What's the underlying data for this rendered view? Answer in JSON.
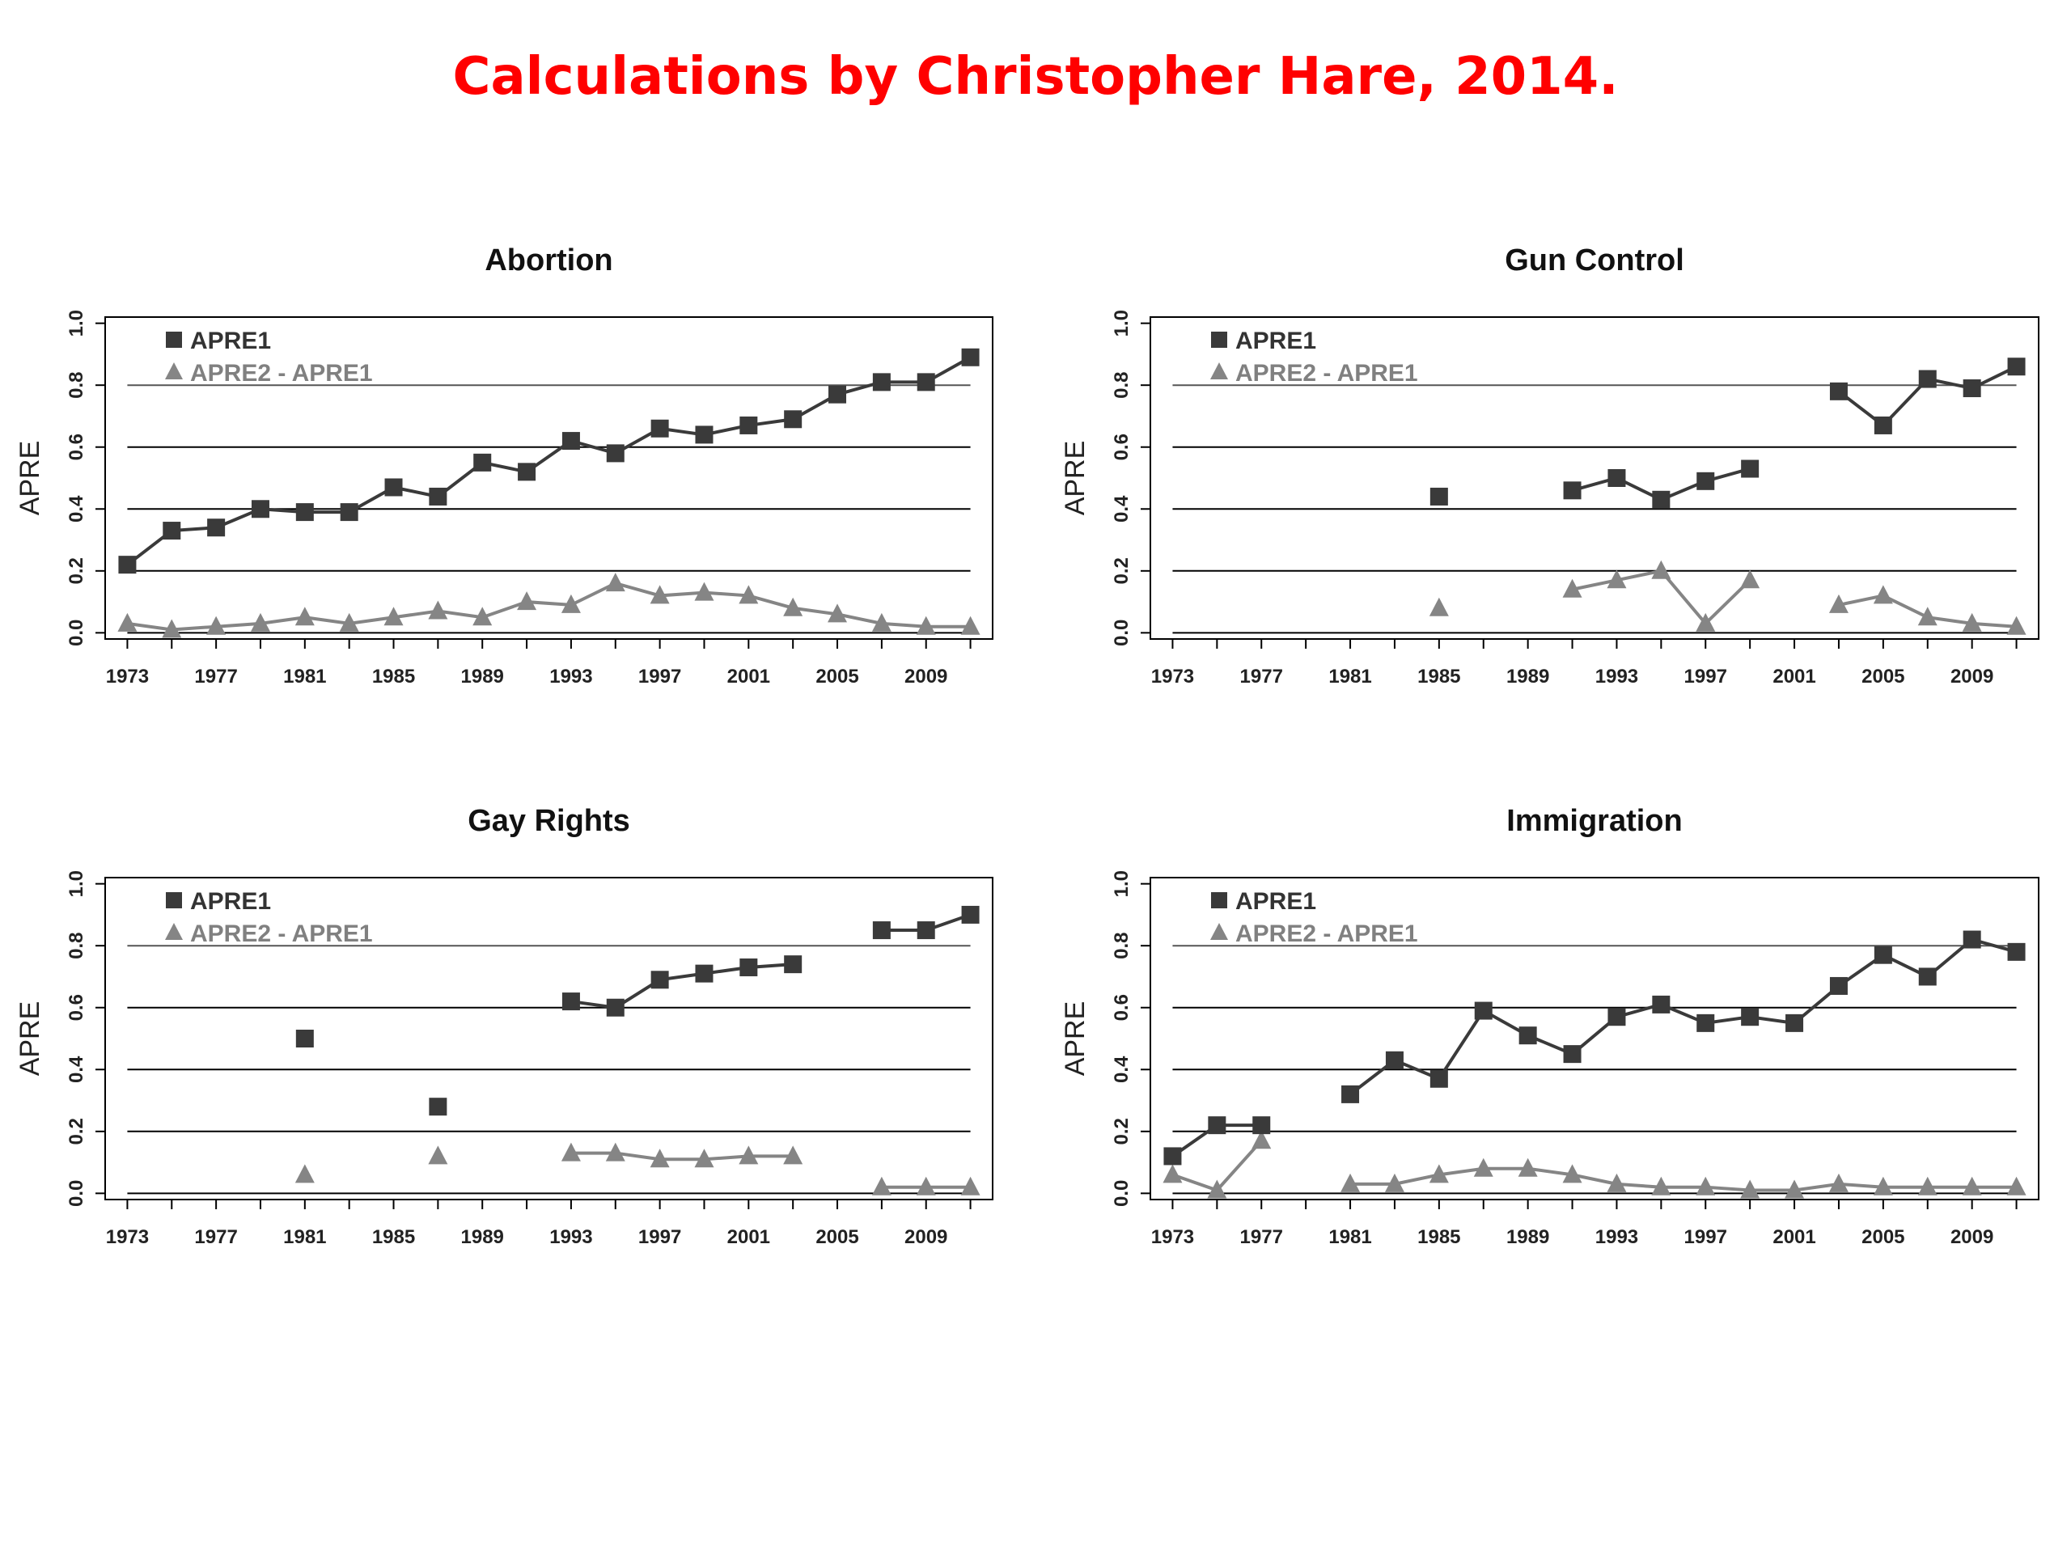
{
  "title": "Calculations by Christopher Hare, 2014.",
  "colors": {
    "title": "#ff0000",
    "apre1": "#3a3a3a",
    "apre2": "#858585",
    "grid": "#000000"
  },
  "chart_data": [
    {
      "type": "line",
      "title": "Abortion",
      "ylabel": "APRE",
      "xlim": [
        1972,
        2012
      ],
      "ylim": [
        -0.02,
        1.02
      ],
      "x_ticks": [
        "1973",
        "1977",
        "1981",
        "1985",
        "1989",
        "1993",
        "1997",
        "2001",
        "2005",
        "2009"
      ],
      "y_ticks": [
        "0.0",
        "0.2",
        "0.4",
        "0.6",
        "0.8",
        "1.0"
      ],
      "gridlines_y": [
        0.0,
        0.2,
        0.4,
        0.6,
        0.8
      ],
      "legend": "top-left",
      "series": [
        {
          "name": "APRE1",
          "marker": "square",
          "x": [
            1973,
            1975,
            1977,
            1979,
            1981,
            1983,
            1985,
            1987,
            1989,
            1991,
            1993,
            1995,
            1997,
            1999,
            2001,
            2003,
            2005,
            2007,
            2009,
            2011
          ],
          "y": [
            0.22,
            0.33,
            0.34,
            0.4,
            0.39,
            0.39,
            0.47,
            0.44,
            0.55,
            0.52,
            0.62,
            0.58,
            0.66,
            0.64,
            0.67,
            0.69,
            0.77,
            0.81,
            0.81,
            0.89
          ]
        },
        {
          "name": "APRE2 - APRE1",
          "marker": "triangle",
          "x": [
            1973,
            1975,
            1977,
            1979,
            1981,
            1983,
            1985,
            1987,
            1989,
            1991,
            1993,
            1995,
            1997,
            1999,
            2001,
            2003,
            2005,
            2007,
            2009,
            2011
          ],
          "y": [
            0.03,
            0.01,
            0.02,
            0.03,
            0.05,
            0.03,
            0.05,
            0.07,
            0.05,
            0.1,
            0.09,
            0.16,
            0.12,
            0.13,
            0.12,
            0.08,
            0.06,
            0.03,
            0.02,
            0.02
          ]
        }
      ]
    },
    {
      "type": "line",
      "title": "Gun Control",
      "ylabel": "APRE",
      "xlim": [
        1972,
        2012
      ],
      "ylim": [
        -0.02,
        1.02
      ],
      "x_ticks": [
        "1973",
        "1977",
        "1981",
        "1985",
        "1989",
        "1993",
        "1997",
        "2001",
        "2005",
        "2009"
      ],
      "y_ticks": [
        "0.0",
        "0.2",
        "0.4",
        "0.6",
        "0.8",
        "1.0"
      ],
      "gridlines_y": [
        0.0,
        0.2,
        0.4,
        0.6,
        0.8
      ],
      "legend": "top-left",
      "series": [
        {
          "name": "APRE1",
          "marker": "square",
          "x": [
            1985,
            null,
            1991,
            1993,
            1995,
            1997,
            1999,
            null,
            2003,
            2005,
            2007,
            2009,
            2011
          ],
          "y": [
            0.44,
            null,
            0.46,
            0.5,
            0.43,
            0.49,
            0.53,
            null,
            0.78,
            0.67,
            0.82,
            0.79,
            0.86
          ]
        },
        {
          "name": "APRE2 - APRE1",
          "marker": "triangle",
          "x": [
            1985,
            null,
            1991,
            1993,
            1995,
            1997,
            1999,
            null,
            2003,
            2005,
            2007,
            2009,
            2011
          ],
          "y": [
            0.08,
            null,
            0.14,
            0.17,
            0.2,
            0.03,
            0.17,
            null,
            0.09,
            0.12,
            0.05,
            0.03,
            0.02
          ]
        }
      ]
    },
    {
      "type": "line",
      "title": "Gay Rights",
      "ylabel": "APRE",
      "xlim": [
        1972,
        2012
      ],
      "ylim": [
        -0.02,
        1.02
      ],
      "x_ticks": [
        "1973",
        "1977",
        "1981",
        "1985",
        "1989",
        "1993",
        "1997",
        "2001",
        "2005",
        "2009"
      ],
      "y_ticks": [
        "0.0",
        "0.2",
        "0.4",
        "0.6",
        "0.8",
        "1.0"
      ],
      "gridlines_y": [
        0.0,
        0.2,
        0.4,
        0.6,
        0.8
      ],
      "legend": "top-left",
      "series": [
        {
          "name": "APRE1",
          "marker": "square",
          "x": [
            1981,
            null,
            1987,
            null,
            1993,
            1995,
            1997,
            1999,
            2001,
            2003,
            null,
            2007,
            2009,
            2011
          ],
          "y": [
            0.5,
            null,
            0.28,
            null,
            0.62,
            0.6,
            0.69,
            0.71,
            0.73,
            0.74,
            null,
            0.85,
            0.85,
            0.9
          ]
        },
        {
          "name": "APRE2 - APRE1",
          "marker": "triangle",
          "x": [
            1981,
            null,
            1987,
            null,
            1993,
            1995,
            1997,
            1999,
            2001,
            2003,
            null,
            2007,
            2009,
            2011
          ],
          "y": [
            0.06,
            null,
            0.12,
            null,
            0.13,
            0.13,
            0.11,
            0.11,
            0.12,
            0.12,
            null,
            0.02,
            0.02,
            0.02
          ]
        }
      ]
    },
    {
      "type": "line",
      "title": "Immigration",
      "ylabel": "APRE",
      "xlim": [
        1972,
        2012
      ],
      "ylim": [
        -0.02,
        1.02
      ],
      "x_ticks": [
        "1973",
        "1977",
        "1981",
        "1985",
        "1989",
        "1993",
        "1997",
        "2001",
        "2005",
        "2009"
      ],
      "y_ticks": [
        "0.0",
        "0.2",
        "0.4",
        "0.6",
        "0.8",
        "1.0"
      ],
      "gridlines_y": [
        0.0,
        0.2,
        0.4,
        0.6,
        0.8
      ],
      "legend": "top-left",
      "series": [
        {
          "name": "APRE1",
          "marker": "square",
          "x": [
            1973,
            1975,
            1977,
            null,
            1981,
            1983,
            1985,
            1987,
            1989,
            1991,
            1993,
            1995,
            1997,
            1999,
            2001,
            2003,
            2005,
            2007,
            2009,
            2011
          ],
          "y": [
            0.12,
            0.22,
            0.22,
            null,
            0.32,
            0.43,
            0.37,
            0.59,
            0.51,
            0.45,
            0.57,
            0.61,
            0.55,
            0.57,
            0.55,
            0.67,
            0.77,
            0.7,
            0.82,
            0.78
          ]
        },
        {
          "name": "APRE2 - APRE1",
          "marker": "triangle",
          "x": [
            1973,
            1975,
            1977,
            null,
            1981,
            1983,
            1985,
            1987,
            1989,
            1991,
            1993,
            1995,
            1997,
            1999,
            2001,
            2003,
            2005,
            2007,
            2009,
            2011
          ],
          "y": [
            0.06,
            0.01,
            0.17,
            null,
            0.03,
            0.03,
            0.06,
            0.08,
            0.08,
            0.06,
            0.03,
            0.02,
            0.02,
            0.01,
            0.01,
            0.03,
            0.02,
            0.02,
            0.02,
            0.02
          ]
        }
      ]
    }
  ]
}
